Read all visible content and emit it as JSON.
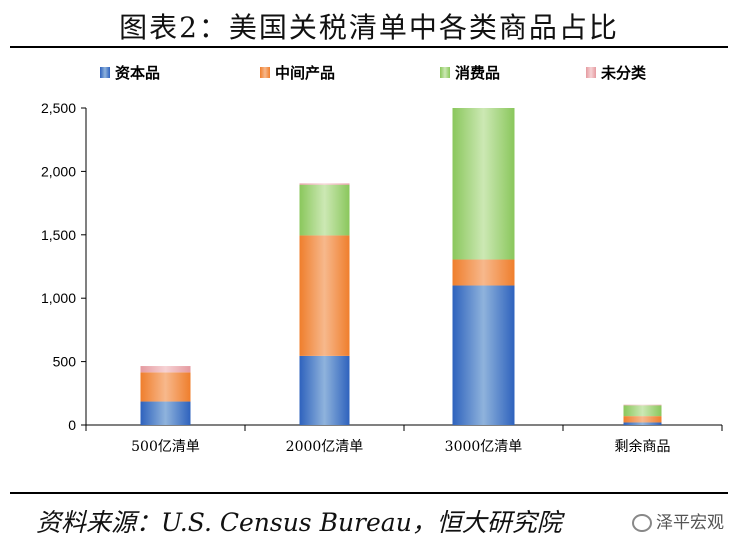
{
  "title": "图表2：美国关税清单中各类商品占比",
  "source": "资料来源：U.S. Census Bureau，恒大研究院",
  "watermark": "泽平宏观",
  "chart_data": {
    "type": "bar",
    "stacked": true,
    "categories": [
      "500亿清单",
      "2000亿清单",
      "3000亿清单",
      "剩余商品"
    ],
    "series": [
      {
        "name": "资本品",
        "color": "#3a6fc4",
        "values": [
          185,
          545,
          1100,
          20
        ]
      },
      {
        "name": "中间产品",
        "color": "#f08a3a",
        "values": [
          230,
          950,
          205,
          50
        ]
      },
      {
        "name": "消费品",
        "color": "#92cc6a",
        "values": [
          0,
          400,
          1195,
          85
        ]
      },
      {
        "name": "未分类",
        "color": "#e9a4a8",
        "values": [
          50,
          10,
          0,
          5
        ]
      }
    ],
    "ylim": [
      0,
      2500
    ],
    "yticks": [
      0,
      500,
      1000,
      1500,
      2000,
      2500
    ],
    "ytick_labels": [
      "0",
      "500",
      "1,000",
      "1,500",
      "2,000",
      "2,500"
    ],
    "legend_position": "top",
    "grid": false
  }
}
